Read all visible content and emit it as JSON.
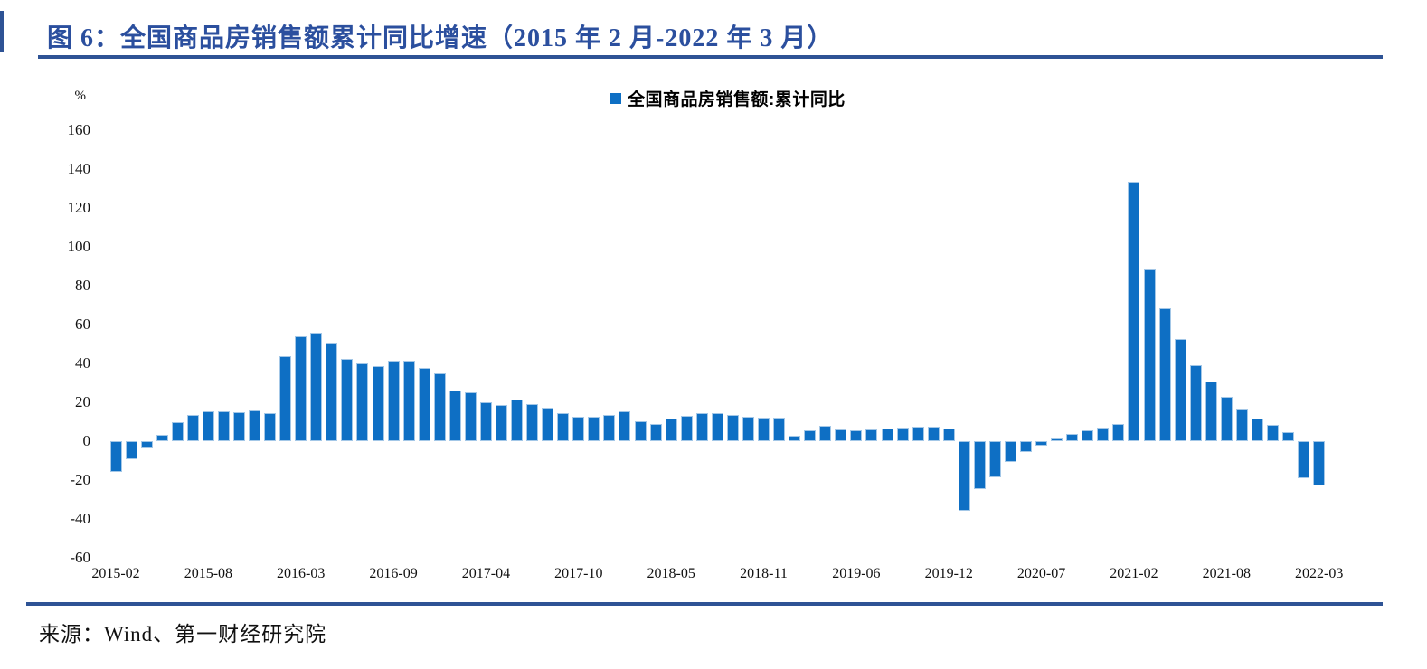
{
  "header": {
    "title": "图 6：全国商品房销售额累计同比增速（2015 年 2 月-2022 年 3 月）"
  },
  "source": {
    "text": "来源：Wind、第一财经研究院"
  },
  "chart_data": {
    "type": "bar",
    "title": "图 6：全国商品房销售额累计同比增速（2015 年 2 月-2022 年 3 月）",
    "legend_label": "全国商品房销售额:累计同比",
    "legend_position": "top-center",
    "unit_label": "%",
    "grid": false,
    "bar_color": "#0e6fc4",
    "ylim": [
      -60,
      160
    ],
    "y_ticks": [
      160,
      140,
      120,
      100,
      80,
      60,
      40,
      20,
      0,
      -20,
      -40,
      -60
    ],
    "x_tick_labels": [
      "2015-02",
      "2015-08",
      "2016-03",
      "2016-09",
      "2017-04",
      "2017-10",
      "2018-05",
      "2018-11",
      "2019-06",
      "2019-12",
      "2020-07",
      "2021-02",
      "2021-08",
      "2022-03"
    ],
    "categories": [
      "2015-02",
      "2015-03",
      "2015-04",
      "2015-05",
      "2015-06",
      "2015-07",
      "2015-08",
      "2015-09",
      "2015-10",
      "2015-11",
      "2015-12",
      "2016-02",
      "2016-03",
      "2016-04",
      "2016-05",
      "2016-06",
      "2016-07",
      "2016-08",
      "2016-09",
      "2016-10",
      "2016-11",
      "2016-12",
      "2017-02",
      "2017-03",
      "2017-04",
      "2017-05",
      "2017-06",
      "2017-07",
      "2017-08",
      "2017-09",
      "2017-10",
      "2017-11",
      "2017-12",
      "2018-02",
      "2018-03",
      "2018-04",
      "2018-05",
      "2018-06",
      "2018-07",
      "2018-08",
      "2018-09",
      "2018-10",
      "2018-11",
      "2018-12",
      "2019-02",
      "2019-03",
      "2019-04",
      "2019-05",
      "2019-06",
      "2019-07",
      "2019-08",
      "2019-09",
      "2019-10",
      "2019-11",
      "2019-12",
      "2020-02",
      "2020-03",
      "2020-04",
      "2020-05",
      "2020-06",
      "2020-07",
      "2020-08",
      "2020-09",
      "2020-10",
      "2020-11",
      "2020-12",
      "2021-02",
      "2021-03",
      "2021-04",
      "2021-05",
      "2021-06",
      "2021-07",
      "2021-08",
      "2021-09",
      "2021-10",
      "2021-11",
      "2021-12",
      "2022-02",
      "2022-03"
    ],
    "values": [
      -15.8,
      -9.2,
      -3.1,
      3.1,
      10.0,
      13.4,
      15.3,
      15.3,
      14.9,
      15.6,
      14.4,
      43.6,
      54.1,
      55.9,
      50.7,
      42.1,
      39.8,
      38.7,
      41.3,
      41.2,
      37.5,
      34.8,
      26.0,
      25.1,
      20.1,
      18.6,
      21.5,
      18.9,
      17.2,
      14.6,
      12.6,
      12.7,
      13.7,
      15.3,
      10.4,
      9.0,
      11.8,
      13.2,
      14.4,
      14.5,
      13.3,
      12.5,
      12.1,
      12.2,
      2.8,
      5.6,
      8.1,
      6.1,
      5.6,
      6.2,
      6.7,
      7.1,
      7.3,
      7.3,
      6.5,
      -35.9,
      -24.7,
      -18.6,
      -10.6,
      -5.4,
      -2.1,
      1.6,
      3.7,
      5.8,
      7.2,
      8.7,
      133.4,
      88.5,
      68.2,
      52.4,
      38.9,
      30.7,
      22.8,
      16.6,
      11.8,
      8.5,
      4.8,
      -19.3,
      -22.7
    ]
  }
}
